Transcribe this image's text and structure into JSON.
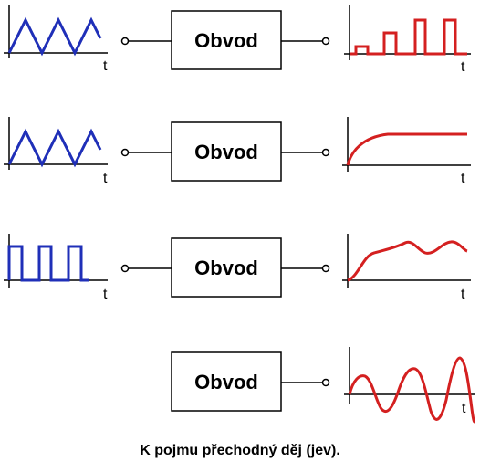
{
  "box_label": "Obvod",
  "axis_label": "t",
  "caption": "K pojmu přechodný děj (jev).",
  "colors": {
    "input": "#1f2fb8",
    "output": "#d42020",
    "line": "#000000"
  },
  "rows": [
    {
      "input": "triangle-wave",
      "output": "growing-pulses"
    },
    {
      "input": "triangle-wave",
      "output": "exponential-rise"
    },
    {
      "input": "square-wave",
      "output": "overshoot-oscillation"
    },
    {
      "input": "none",
      "output": "growing-sine"
    }
  ]
}
